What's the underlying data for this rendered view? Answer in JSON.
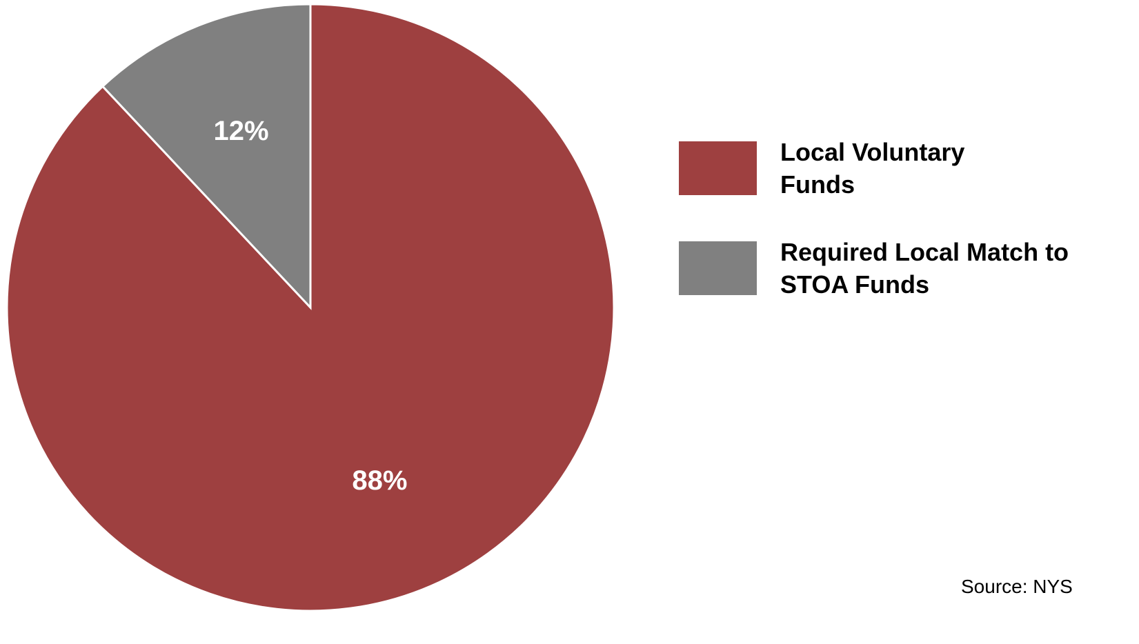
{
  "chart_data": {
    "type": "pie",
    "categories": [
      "Local Voluntary Funds",
      "Required Local Match to STOA Funds"
    ],
    "values": [
      88,
      12
    ],
    "value_labels": [
      "88%",
      "12%"
    ],
    "colors": [
      "#9e4040",
      "#808080"
    ],
    "legend": "right",
    "source": "Source: NYS"
  }
}
